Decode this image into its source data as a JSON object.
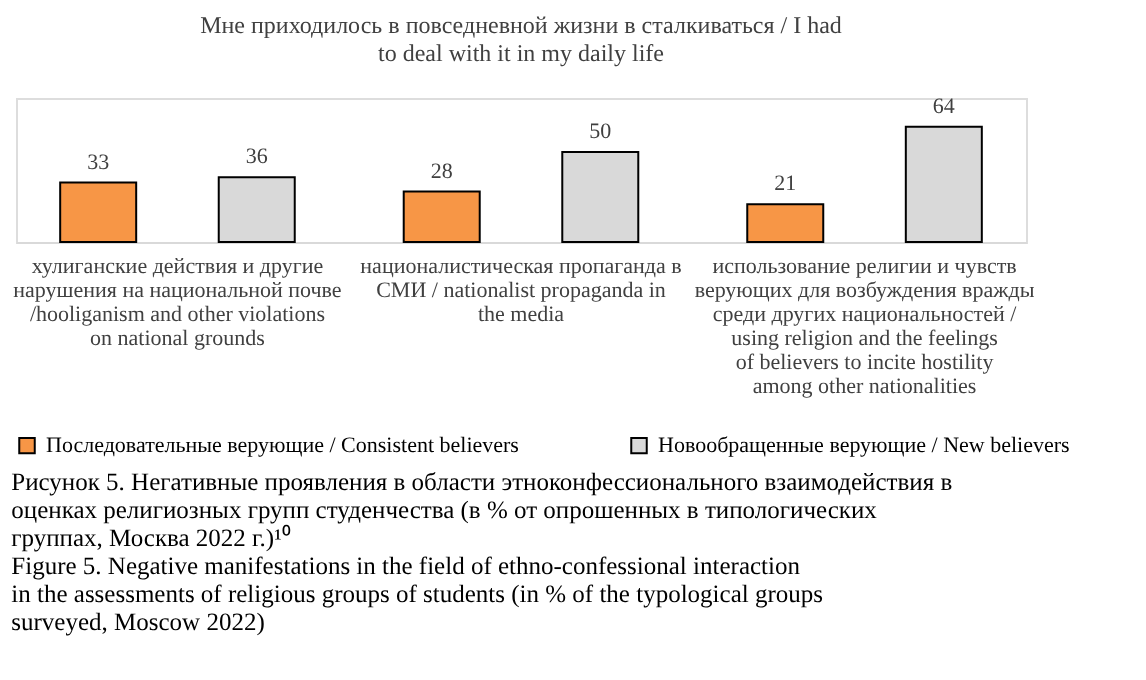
{
  "chart_data": {
    "type": "bar",
    "title": "Мне приходилось в повседневной жизни в сталкиваться / I had to deal with it in my daily life",
    "categories": [
      "хулиганские действия и другие нарушения на национальной почве /hooliganism and other violations on national grounds",
      "националистическая пропаганда в СМИ / nationalist propaganda in the media",
      "использование религии и чувств верующих для возбуждения вражды среди других национальностей / using religion and the feelings of believers to incite hostility among other nationalities"
    ],
    "series": [
      {
        "name": "Последовательные верующие /  Consistent believers",
        "color": "#f79646",
        "values": [
          33,
          28,
          21
        ]
      },
      {
        "name": "Новообращенные верующие / New believers",
        "color": "#d9d9d9",
        "values": [
          36,
          50,
          64
        ]
      }
    ],
    "data_labels": true,
    "legend": "bottom",
    "grid": false,
    "annotations": [
      "Рисунок 5. Негативные проявления в области этноконфессионального взаимодействия в оценках религиозных групп студенчества (в % от опрошенных в типологических группах, Москва 2022 г.)¹⁰",
      "Figure 5. Negative manifestations in the field of ethno-confessional interaction in the assessments of religious groups of students (in % of the typological groups surveyed, Moscow 2022)"
    ]
  }
}
